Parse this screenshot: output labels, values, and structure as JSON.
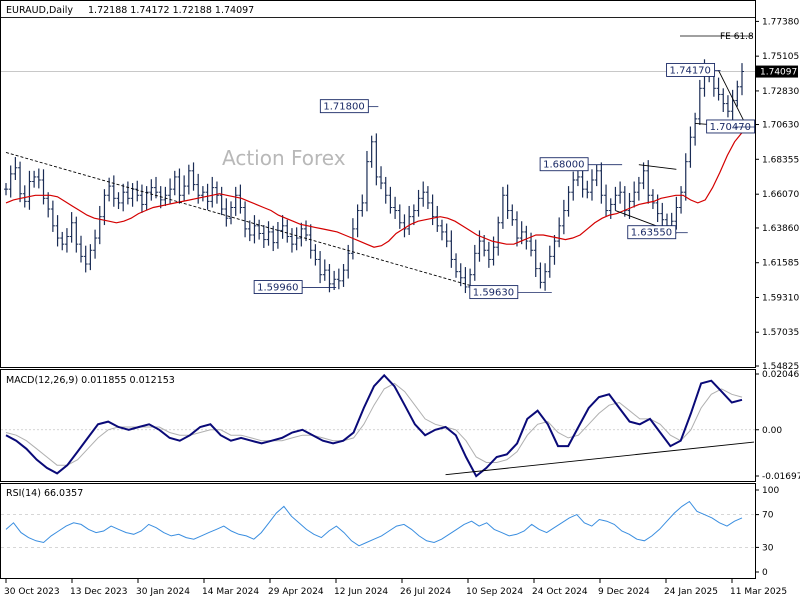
{
  "header": {
    "symbol": "EURAUD,Daily",
    "ohlc": "1.72188 1.74172 1.72188 1.74097"
  },
  "watermark": "Action Forex",
  "colors": {
    "candles": "#1a2c55",
    "sma": "#d40000",
    "trendline": "#000000",
    "macd": "#0a0a78",
    "signal": "#b0b0b0",
    "rsi": "#3a8ee0",
    "last_price_bg": "#000000",
    "grid": "#c8c8c8",
    "label_border": "#1a2a66"
  },
  "chart_data": [
    {
      "type": "line",
      "title": "",
      "x_ticks": [
        "30 Oct 2023",
        "13 Dec 2023",
        "30 Jan 2024",
        "14 Mar 2024",
        "29 Apr 2024",
        "12 Jun 2024",
        "26 Jul 2024",
        "10 Sep 2024",
        "24 Oct 2024",
        "9 Dec 2024",
        "24 Jan 2025",
        "11 Mar 2025"
      ],
      "y_ticks": [
        "1.77380",
        "1.75105",
        "1.72830",
        "1.70630",
        "1.68355",
        "1.66070",
        "1.63860",
        "1.61585",
        "1.59310",
        "1.57035",
        "1.54825"
      ],
      "ylim": [
        1.54825,
        1.7865
      ],
      "last_price": "1.74097",
      "price_labels": [
        {
          "text": "1.71800",
          "value": 1.718
        },
        {
          "text": "1.59960",
          "value": 1.5996
        },
        {
          "text": "1.59630",
          "value": 1.5963
        },
        {
          "text": "1.68000",
          "value": 1.68
        },
        {
          "text": "1.63550",
          "value": 1.6355
        },
        {
          "text": "1.74170",
          "value": 1.7417
        },
        {
          "text": "1.70470",
          "value": 1.7047
        }
      ],
      "fib_label": "FE 61.8",
      "fib_level": 1.7763,
      "series": [
        {
          "kind": "close",
          "values": [
            1.664,
            1.674,
            1.678,
            1.661,
            1.656,
            1.669,
            1.672,
            1.67,
            1.658,
            1.651,
            1.64,
            1.632,
            1.628,
            1.633,
            1.642,
            1.628,
            1.62,
            1.615,
            1.624,
            1.632,
            1.646,
            1.66,
            1.666,
            1.658,
            1.655,
            1.662,
            1.658,
            1.664,
            1.66,
            1.654,
            1.662,
            1.665,
            1.662,
            1.657,
            1.66,
            1.664,
            1.672,
            1.66,
            1.666,
            1.676,
            1.667,
            1.66,
            1.662,
            1.656,
            1.665,
            1.66,
            1.651,
            1.645,
            1.652,
            1.66,
            1.652,
            1.638,
            1.634,
            1.64,
            1.635,
            1.631,
            1.636,
            1.629,
            1.637,
            1.64,
            1.633,
            1.628,
            1.632,
            1.638,
            1.634,
            1.624,
            1.618,
            1.608,
            1.611,
            1.602,
            1.605,
            1.604,
            1.611,
            1.622,
            1.638,
            1.65,
            1.655,
            1.682,
            1.695,
            1.672,
            1.668,
            1.66,
            1.652,
            1.65,
            1.642,
            1.638,
            1.646,
            1.65,
            1.658,
            1.662,
            1.655,
            1.646,
            1.64,
            1.636,
            1.63,
            1.618,
            1.61,
            1.606,
            1.6,
            1.608,
            1.622,
            1.63,
            1.624,
            1.618,
            1.626,
            1.642,
            1.66,
            1.65,
            1.644,
            1.632,
            1.636,
            1.63,
            1.624,
            1.612,
            1.603,
            1.61,
            1.62,
            1.63,
            1.64,
            1.65,
            1.662,
            1.67,
            1.672,
            1.664,
            1.662,
            1.67,
            1.676,
            1.66,
            1.65,
            1.654,
            1.66,
            1.662,
            1.65,
            1.656,
            1.662,
            1.668,
            1.676,
            1.66,
            1.655,
            1.648,
            1.644,
            1.64,
            1.643,
            1.652,
            1.662,
            1.682,
            1.698,
            1.71,
            1.73,
            1.742,
            1.738,
            1.73,
            1.726,
            1.72,
            1.715,
            1.722,
            1.731,
            1.741
          ]
        },
        {
          "kind": "sma",
          "values": [
            1.655,
            1.657,
            1.658,
            1.659,
            1.66,
            1.66,
            1.66,
            1.659,
            1.656,
            1.653,
            1.65,
            1.647,
            1.645,
            1.644,
            1.643,
            1.642,
            1.643,
            1.645,
            1.648,
            1.65,
            1.652,
            1.653,
            1.654,
            1.655,
            1.656,
            1.657,
            1.658,
            1.659,
            1.66,
            1.661,
            1.66,
            1.659,
            1.658,
            1.656,
            1.654,
            1.652,
            1.65,
            1.647,
            1.645,
            1.643,
            1.641,
            1.64,
            1.639,
            1.638,
            1.637,
            1.636,
            1.634,
            1.632,
            1.63,
            1.628,
            1.626,
            1.627,
            1.63,
            1.635,
            1.638,
            1.641,
            1.643,
            1.644,
            1.645,
            1.646,
            1.645,
            1.643,
            1.64,
            1.637,
            1.634,
            1.632,
            1.63,
            1.629,
            1.628,
            1.628,
            1.63,
            1.632,
            1.634,
            1.634,
            1.633,
            1.632,
            1.631,
            1.632,
            1.634,
            1.638,
            1.642,
            1.645,
            1.647,
            1.648,
            1.65,
            1.652,
            1.654,
            1.655,
            1.656,
            1.658,
            1.659,
            1.66,
            1.66,
            1.657,
            1.655,
            1.657,
            1.665,
            1.675,
            1.686,
            1.695,
            1.701
          ]
        }
      ]
    },
    {
      "type": "line",
      "title": "MACD(12,26,9) 0.011855 0.012153",
      "y_ticks": [
        "0.02046",
        "0.00",
        "-0.01697"
      ],
      "ylim": [
        -0.01697,
        0.02046
      ],
      "series": [
        {
          "kind": "macd",
          "values": [
            -0.002,
            -0.004,
            -0.007,
            -0.011,
            -0.014,
            -0.016,
            -0.013,
            -0.008,
            -0.003,
            0.002,
            0.003,
            0.001,
            0.0,
            0.001,
            0.002,
            0.0,
            -0.003,
            -0.004,
            -0.002,
            0.001,
            0.002,
            -0.002,
            -0.004,
            -0.003,
            -0.004,
            -0.005,
            -0.004,
            -0.003,
            -0.001,
            0.0,
            -0.002,
            -0.004,
            -0.005,
            -0.004,
            -0.001,
            0.008,
            0.016,
            0.02,
            0.016,
            0.009,
            0.002,
            -0.002,
            0.0,
            0.001,
            -0.002,
            -0.01,
            -0.017,
            -0.014,
            -0.01,
            -0.009,
            -0.005,
            0.004,
            0.007,
            0.002,
            -0.006,
            -0.006,
            0.001,
            0.008,
            0.012,
            0.013,
            0.008,
            0.003,
            0.002,
            0.004,
            -0.001,
            -0.006,
            -0.004,
            0.006,
            0.017,
            0.018,
            0.014,
            0.01,
            0.011
          ]
        },
        {
          "kind": "signal",
          "values": [
            -0.001,
            -0.002,
            -0.004,
            -0.007,
            -0.01,
            -0.013,
            -0.013,
            -0.011,
            -0.007,
            -0.003,
            0.0,
            0.001,
            0.001,
            0.001,
            0.001,
            0.001,
            -0.001,
            -0.002,
            -0.002,
            -0.001,
            0.0,
            0.0,
            -0.002,
            -0.002,
            -0.003,
            -0.004,
            -0.004,
            -0.004,
            -0.003,
            -0.002,
            -0.002,
            -0.003,
            -0.004,
            -0.004,
            -0.003,
            0.002,
            0.009,
            0.015,
            0.017,
            0.014,
            0.009,
            0.004,
            0.002,
            0.001,
            0.0,
            -0.004,
            -0.01,
            -0.012,
            -0.012,
            -0.011,
            -0.008,
            -0.002,
            0.002,
            0.003,
            -0.001,
            -0.003,
            -0.002,
            0.002,
            0.006,
            0.009,
            0.01,
            0.007,
            0.004,
            0.004,
            0.002,
            -0.002,
            -0.004,
            0.0,
            0.008,
            0.013,
            0.015,
            0.013,
            0.012
          ]
        }
      ]
    },
    {
      "type": "line",
      "title": "RSI(14) 66.0357",
      "y_ticks": [
        "100",
        "70",
        "30",
        "0"
      ],
      "ylim": [
        0,
        100
      ],
      "reference_lines": [
        70,
        30
      ],
      "series": [
        {
          "kind": "rsi",
          "values": [
            52,
            60,
            48,
            42,
            38,
            36,
            44,
            50,
            56,
            60,
            58,
            52,
            48,
            50,
            56,
            52,
            48,
            46,
            50,
            58,
            54,
            48,
            44,
            46,
            42,
            40,
            44,
            48,
            52,
            56,
            50,
            46,
            44,
            40,
            48,
            60,
            72,
            80,
            68,
            60,
            52,
            46,
            42,
            50,
            56,
            48,
            38,
            32,
            36,
            40,
            44,
            50,
            56,
            58,
            52,
            44,
            38,
            36,
            40,
            46,
            52,
            58,
            62,
            56,
            60,
            52,
            48,
            44,
            46,
            50,
            58,
            52,
            48,
            54,
            60,
            66,
            70,
            60,
            56,
            64,
            62,
            58,
            50,
            46,
            40,
            38,
            44,
            52,
            62,
            72,
            80,
            86,
            74,
            70,
            66,
            60,
            56,
            62,
            66
          ]
        }
      ]
    }
  ]
}
